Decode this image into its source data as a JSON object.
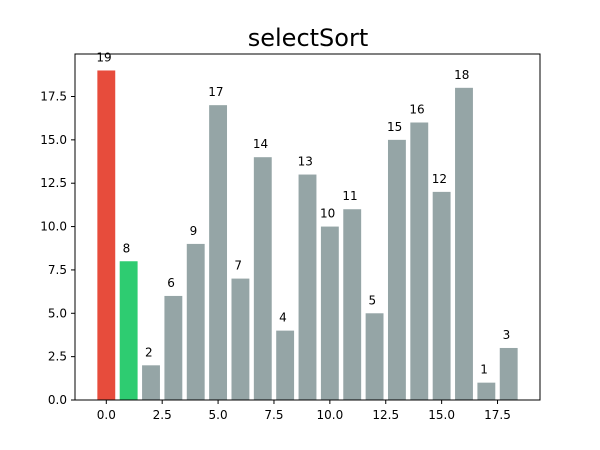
{
  "chart_data": {
    "type": "bar",
    "title": "selectSort",
    "xlabel": "",
    "ylabel": "",
    "x": [
      0,
      1,
      2,
      3,
      4,
      5,
      6,
      7,
      8,
      9,
      10,
      11,
      12,
      13,
      14,
      15,
      16,
      17,
      18
    ],
    "values": [
      19,
      8,
      2,
      6,
      9,
      17,
      7,
      14,
      4,
      13,
      10,
      11,
      5,
      15,
      16,
      12,
      18,
      1,
      3
    ],
    "data_labels": [
      "19",
      "8",
      "2",
      "6",
      "9",
      "17",
      "7",
      "14",
      "4",
      "13",
      "10",
      "11",
      "5",
      "15",
      "16",
      "12",
      "18",
      "1",
      "3"
    ],
    "highlight": {
      "0": "#e74c3c",
      "1": "#2ecc71"
    },
    "default_color": "#95a5a6",
    "xlim": [
      -1.4,
      19.4
    ],
    "ylim": [
      0,
      19.95
    ],
    "xticks": [
      0.0,
      2.5,
      5.0,
      7.5,
      10.0,
      12.5,
      15.0,
      17.5
    ],
    "xtick_labels": [
      "0.0",
      "2.5",
      "5.0",
      "7.5",
      "10.0",
      "12.5",
      "15.0",
      "17.5"
    ],
    "yticks": [
      0.0,
      2.5,
      5.0,
      7.5,
      10.0,
      12.5,
      15.0,
      17.5
    ],
    "ytick_labels": [
      "0.0",
      "2.5",
      "5.0",
      "7.5",
      "10.0",
      "12.5",
      "15.0",
      "17.5"
    ],
    "grid": false,
    "legend": "none"
  }
}
